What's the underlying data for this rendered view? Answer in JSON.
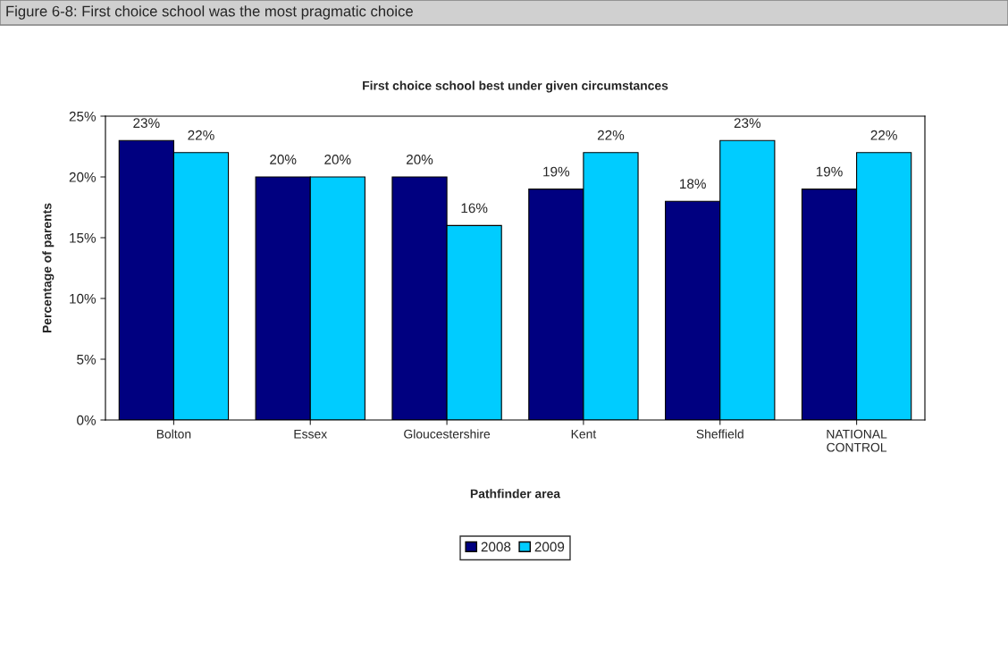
{
  "chart_data": {
    "type": "bar",
    "title": "Figure 6-8: First choice school was the most pragmatic choice",
    "subtitle": "First choice school best under given circumstances",
    "xlabel": "Pathfinder area",
    "ylabel": "Percentage of parents",
    "categories": [
      "Bolton",
      "Essex",
      "Gloucestershire",
      "Kent",
      "Sheffield",
      "NATIONAL\nCONTROL"
    ],
    "series": [
      {
        "name": "2008",
        "color": "#000080",
        "values": [
          23,
          20,
          20,
          19,
          18,
          19
        ],
        "value_labels": [
          "23%",
          "20%",
          "20%",
          "19%",
          "18%",
          "19%"
        ]
      },
      {
        "name": "2009",
        "color": "#00ccff",
        "values": [
          22,
          20,
          16,
          22,
          23,
          22
        ],
        "value_labels": [
          "22%",
          "20%",
          "16%",
          "22%",
          "23%",
          "22%"
        ]
      }
    ],
    "ylim": [
      0,
      25
    ],
    "yticks": [
      {
        "value": 0,
        "label": "0%"
      },
      {
        "value": 5,
        "label": "5%"
      },
      {
        "value": 10,
        "label": "10%"
      },
      {
        "value": 15,
        "label": "15%"
      },
      {
        "value": 20,
        "label": "20%"
      },
      {
        "value": 25,
        "label": "25%"
      }
    ],
    "grid": false,
    "legend": "bottom"
  }
}
